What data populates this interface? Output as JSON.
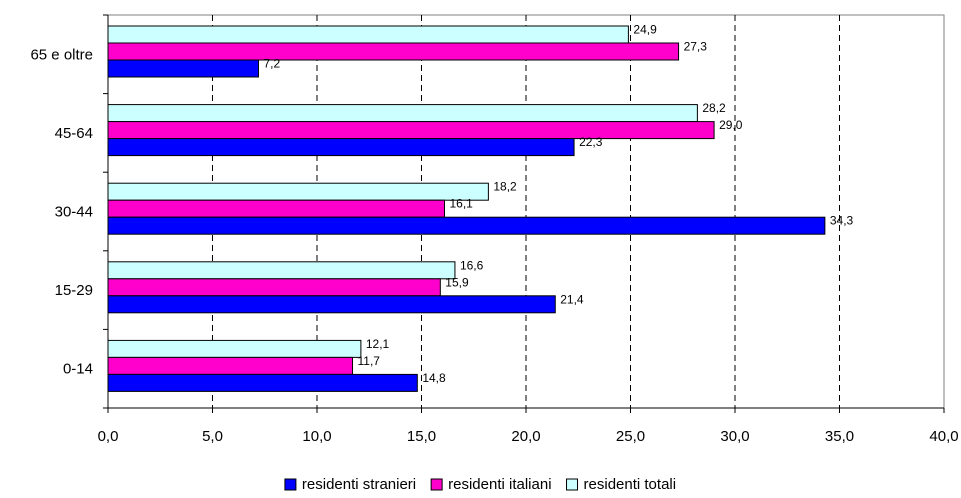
{
  "chart_data": {
    "type": "bar",
    "orientation": "horizontal",
    "categories": [
      "65 e oltre",
      "45-64",
      "30-44",
      "15-29",
      "0-14"
    ],
    "series": [
      {
        "name": "residenti totali",
        "color": "#ccffff",
        "values": [
          24.9,
          28.2,
          18.2,
          16.6,
          12.1
        ],
        "value_labels": [
          "24,9",
          "28,2",
          "18,2",
          "16,6",
          "12,1"
        ]
      },
      {
        "name": "residenti italiani",
        "color": "#ff00cc",
        "values": [
          27.3,
          29.0,
          16.1,
          15.9,
          11.7
        ],
        "value_labels": [
          "27,3",
          "29,0",
          "16,1",
          "15,9",
          "11,7"
        ]
      },
      {
        "name": "residenti stranieri",
        "color": "#0000ff",
        "values": [
          7.2,
          22.3,
          34.3,
          21.4,
          14.8
        ],
        "value_labels": [
          "7,2",
          "22,3",
          "34,3",
          "21,4",
          "14,8"
        ]
      }
    ],
    "xlim": [
      0,
      40
    ],
    "xticks": [
      0,
      5,
      10,
      15,
      20,
      25,
      30,
      35,
      40
    ],
    "xtick_labels": [
      "0,0",
      "5,0",
      "10,0",
      "15,0",
      "20,0",
      "25,0",
      "30,0",
      "35,0",
      "40,0"
    ],
    "grid": "vertical dashed",
    "legend": {
      "position": "bottom",
      "entries": [
        {
          "label": "residenti stranieri",
          "color": "#0000ff"
        },
        {
          "label": "residenti italiani",
          "color": "#ff00cc"
        },
        {
          "label": "residenti totali",
          "color": "#ccffff"
        }
      ]
    },
    "title": "",
    "xlabel": "",
    "ylabel": ""
  }
}
